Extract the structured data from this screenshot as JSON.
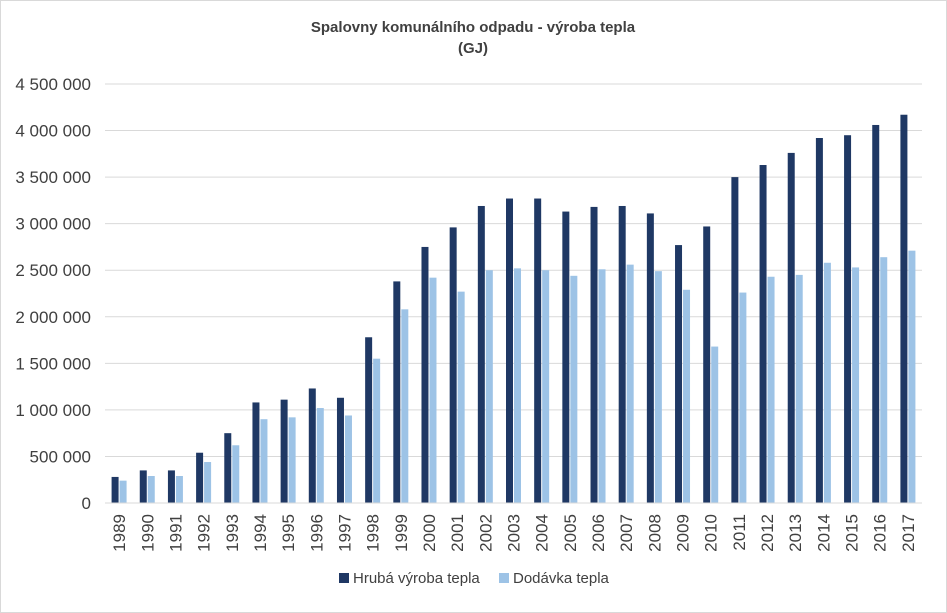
{
  "chart_data": {
    "type": "bar",
    "title": "Spalovny komunálního odpadu - výroba tepla",
    "subtitle": "(GJ)",
    "xlabel": "",
    "ylabel": "",
    "ylim": [
      0,
      4500000
    ],
    "ytick_values": [
      0,
      500000,
      1000000,
      1500000,
      2000000,
      2500000,
      3000000,
      3500000,
      4000000,
      4500000
    ],
    "ytick_labels": [
      "0",
      "500 000",
      "1 000 000",
      "1 500 000",
      "2 000 000",
      "2 500 000",
      "3 000 000",
      "3 500 000",
      "4 000 000",
      "4 500 000"
    ],
    "grid": true,
    "legend_position": "bottom",
    "categories": [
      "1989",
      "1990",
      "1991",
      "1992",
      "1993",
      "1994",
      "1995",
      "1996",
      "1997",
      "1998",
      "1999",
      "2000",
      "2001",
      "2002",
      "2003",
      "2004",
      "2005",
      "2006",
      "2007",
      "2008",
      "2009",
      "2010",
      "2011",
      "2012",
      "2013",
      "2014",
      "2015",
      "2016",
      "2017"
    ],
    "series": [
      {
        "name": "Hrubá výroba tepla",
        "color": "#1f3864",
        "values": [
          280000,
          350000,
          350000,
          540000,
          750000,
          1080000,
          1110000,
          1230000,
          1130000,
          1780000,
          2380000,
          2750000,
          2960000,
          3190000,
          3270000,
          3270000,
          3130000,
          3180000,
          3190000,
          3110000,
          2770000,
          2970000,
          3500000,
          3630000,
          3760000,
          3920000,
          3950000,
          4060000,
          4170000
        ]
      },
      {
        "name": "Dodávka tepla",
        "color": "#9dc3e6",
        "values": [
          240000,
          290000,
          290000,
          440000,
          620000,
          900000,
          920000,
          1020000,
          940000,
          1550000,
          2080000,
          2420000,
          2270000,
          2500000,
          2520000,
          2500000,
          2440000,
          2510000,
          2560000,
          2490000,
          2290000,
          1680000,
          2260000,
          2430000,
          2450000,
          2580000,
          2530000,
          2640000,
          2710000
        ]
      }
    ]
  }
}
